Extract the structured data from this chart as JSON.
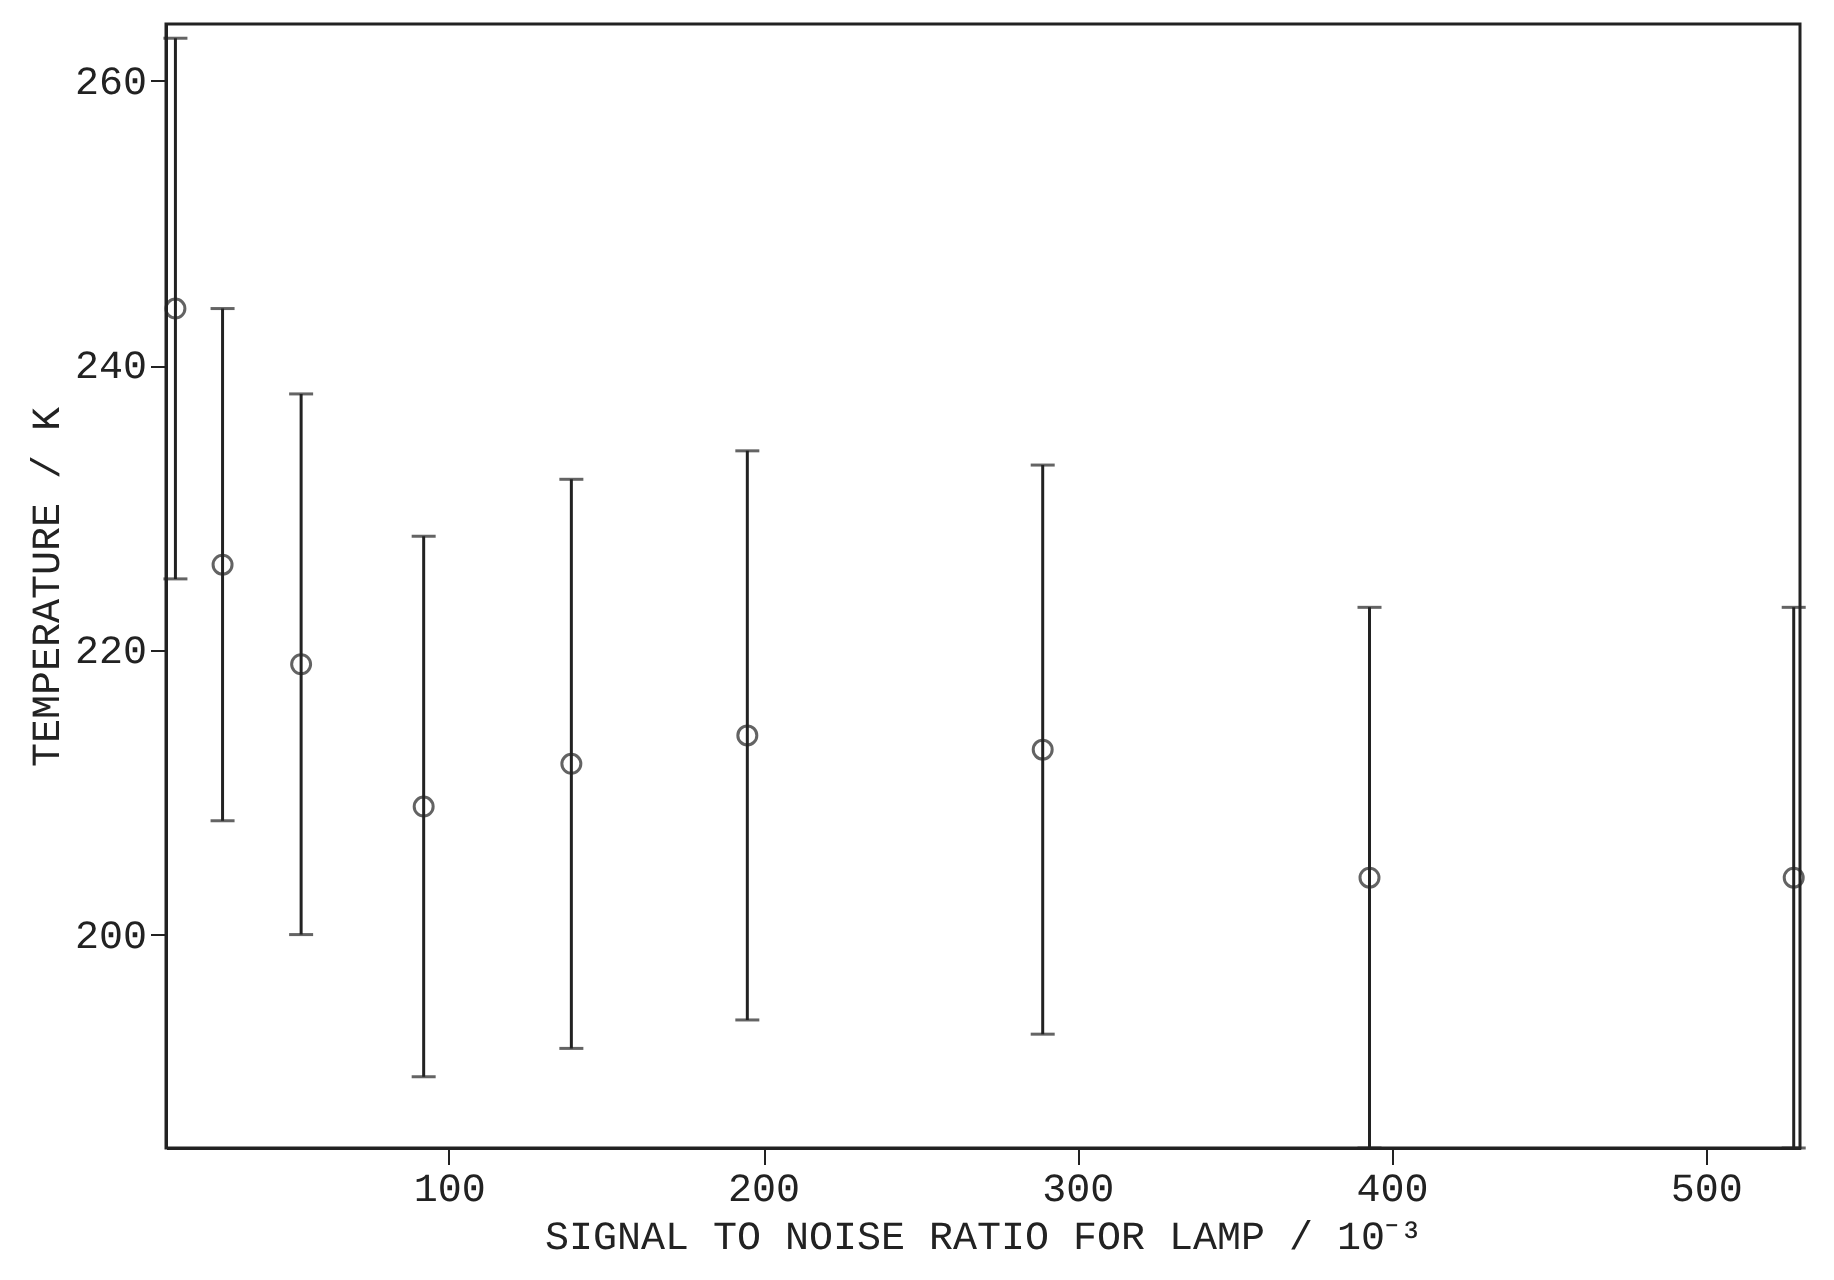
{
  "chart_data": {
    "type": "scatter",
    "xlabel": "SIGNAL TO NOISE RATIO FOR LAMP / 10⁻³",
    "ylabel": "TEMPERATURE / K",
    "x": [
      13,
      28,
      53,
      92,
      139,
      195,
      289,
      393,
      528
    ],
    "values": [
      244,
      226,
      219,
      209,
      212,
      214,
      213,
      204,
      204
    ],
    "errors": [
      [
        225,
        263
      ],
      [
        208,
        244
      ],
      [
        200,
        238
      ],
      [
        190,
        228
      ],
      [
        192,
        232
      ],
      [
        194,
        234
      ],
      [
        193,
        233
      ],
      [
        185,
        223
      ],
      [
        185,
        223
      ]
    ],
    "color": "#222222",
    "marker": "circle",
    "grid": false,
    "xlim": [
      10,
      530
    ],
    "xticks": [
      100,
      200,
      300,
      400,
      500
    ],
    "ylim": [
      185,
      264
    ],
    "yticks": [
      200,
      220,
      240,
      260
    ]
  }
}
